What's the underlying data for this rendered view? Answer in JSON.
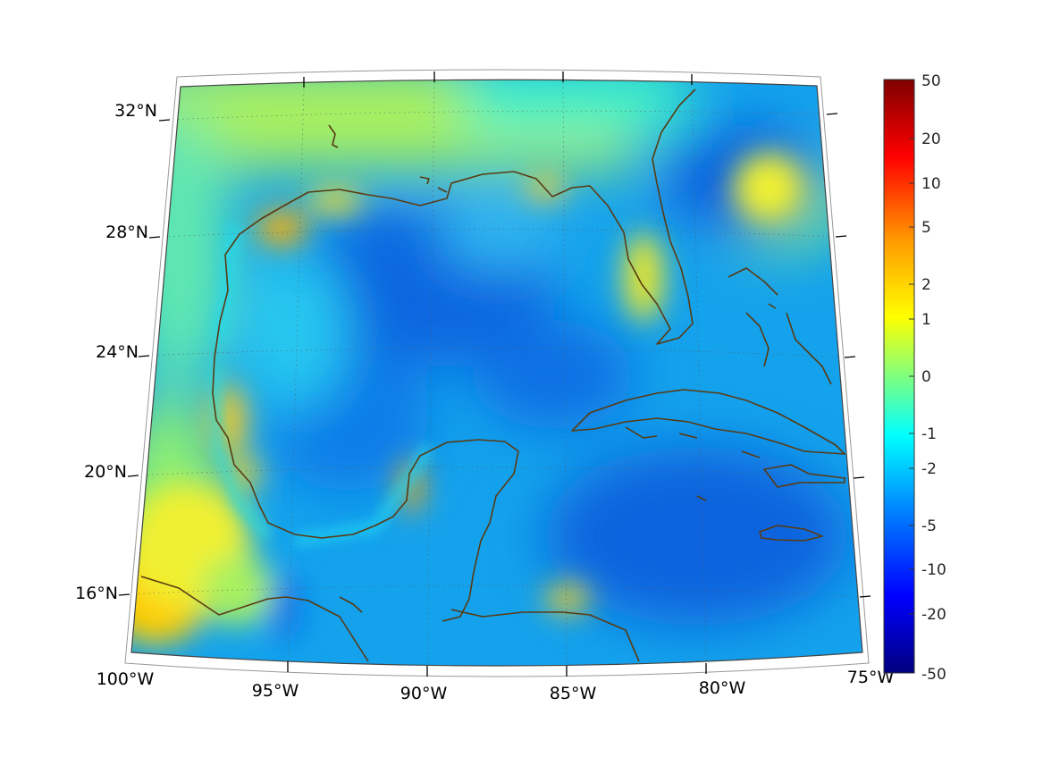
{
  "map": {
    "projection": "conic (Lambert-like), Gulf of Mexico and Caribbean region",
    "field": "gridded scalar field over land and sea, diverging color scale",
    "coastline_color": "#5a3a12",
    "gridlines": "dotted",
    "lon_labels": [
      "100°W",
      "95°W",
      "90°W",
      "85°W",
      "80°W",
      "75°W"
    ],
    "lat_labels": [
      "32°N",
      "28°N",
      "24°N",
      "20°N",
      "16°N"
    ],
    "lon_range_deg": [
      -100,
      -75
    ],
    "lat_range_deg": [
      14.5,
      33
    ]
  },
  "colorbar": {
    "colormap": "jet",
    "tick_labels": [
      "50",
      "20",
      "10",
      "5",
      "2",
      "1",
      "0",
      "-1",
      "-2",
      "-5",
      "-10",
      "-20",
      "-50"
    ],
    "scale": "symmetric nonlinear",
    "range": [
      -50,
      50
    ],
    "colors": [
      "#7f0000",
      "#ff0000",
      "#ff9900",
      "#ffff00",
      "#7fff7f",
      "#00ffff",
      "#0080ff",
      "#0000ff",
      "#00007f"
    ]
  }
}
